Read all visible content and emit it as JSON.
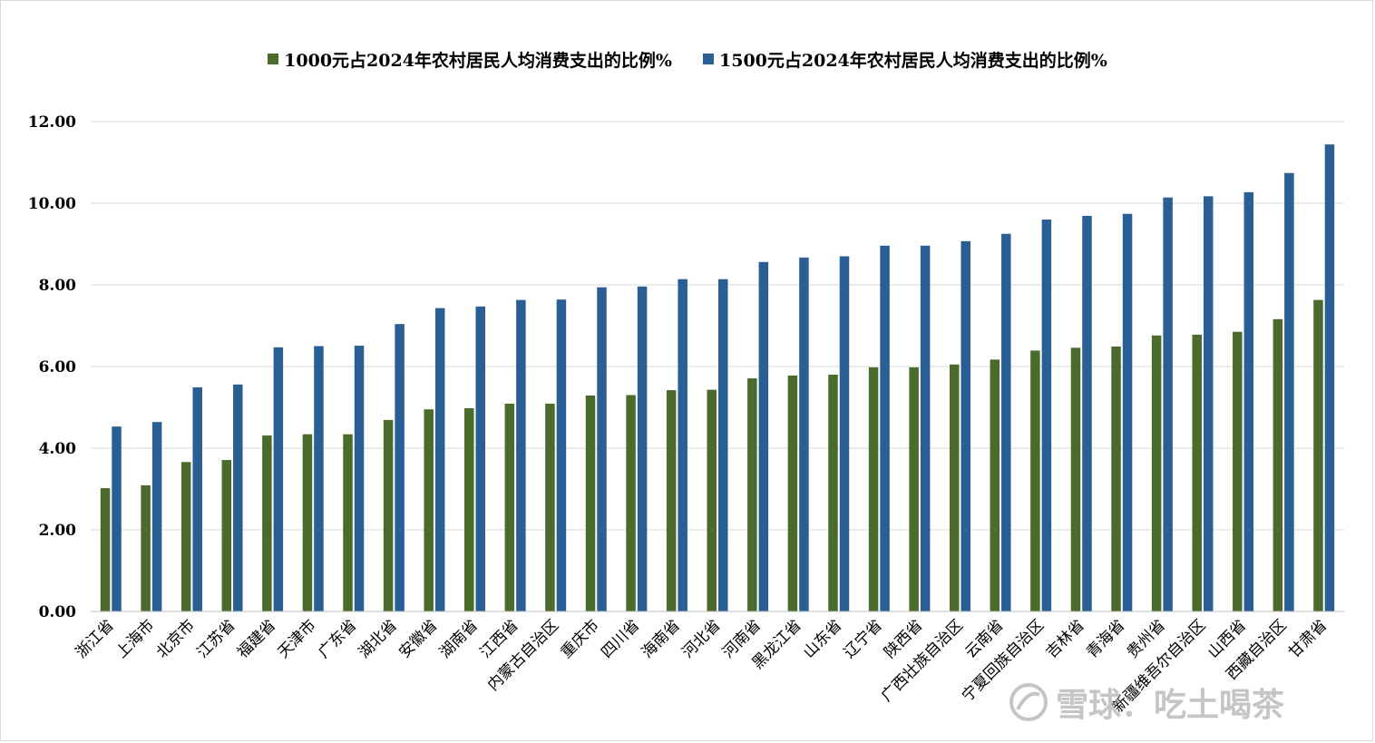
{
  "chart_data": {
    "type": "bar",
    "categories": [
      "浙江省",
      "上海市",
      "北京市",
      "江苏省",
      "福建省",
      "天津市",
      "广东省",
      "湖北省",
      "安徽省",
      "湖南省",
      "江西省",
      "内蒙古自治区",
      "重庆市",
      "四川省",
      "海南省",
      "河北省",
      "河南省",
      "黑龙江省",
      "山东省",
      "辽宁省",
      "陕西省",
      "广西壮族自治区",
      "云南省",
      "宁夏回族自治区",
      "吉林省",
      "青海省",
      "贵州省",
      "新疆维吾尔自治区",
      "山西省",
      "西藏自治区",
      "甘肃省"
    ],
    "series": [
      {
        "name": "1000元占2024年农村居民人均消费支出的比例%",
        "color": "#4a6b2b",
        "values": [
          3.02,
          3.09,
          3.66,
          3.71,
          4.31,
          4.34,
          4.34,
          4.69,
          4.95,
          4.98,
          5.09,
          5.09,
          5.29,
          5.3,
          5.42,
          5.43,
          5.71,
          5.78,
          5.8,
          5.98,
          5.98,
          6.05,
          6.17,
          6.39,
          6.46,
          6.49,
          6.76,
          6.78,
          6.85,
          7.16,
          7.63
        ]
      },
      {
        "name": "1500元占2024年农村居民人均消费支出的比例%",
        "color": "#2a5f95",
        "values": [
          4.53,
          4.64,
          5.49,
          5.56,
          6.47,
          6.5,
          6.51,
          7.04,
          7.43,
          7.47,
          7.63,
          7.64,
          7.94,
          7.96,
          8.14,
          8.14,
          8.56,
          8.67,
          8.7,
          8.96,
          8.96,
          9.07,
          9.25,
          9.6,
          9.69,
          9.74,
          10.14,
          10.17,
          10.27,
          10.74,
          11.44
        ]
      }
    ],
    "ylim": [
      0,
      12
    ],
    "yticks": [
      "0.00",
      "2.00",
      "4.00",
      "6.00",
      "8.00",
      "10.00",
      "12.00"
    ],
    "grid": true,
    "legend_position": "top"
  },
  "watermark": {
    "text": "雪球：吃土喝茶",
    "icon": "snowball-logo-icon"
  }
}
